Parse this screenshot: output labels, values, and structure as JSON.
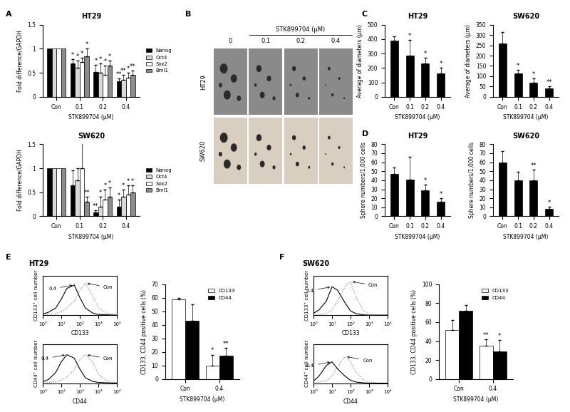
{
  "panel_labels": [
    "A",
    "B",
    "C",
    "D",
    "E",
    "F"
  ],
  "section_titles": [
    "HT29",
    "SW620"
  ],
  "image_panel": {
    "column_header": "STK899704 (μM)",
    "columns": [
      "0",
      "0.1",
      "0.2",
      "0.4"
    ],
    "rows": [
      "HT29",
      "SW620"
    ]
  },
  "chart_data": [
    {
      "type": "bar",
      "title": "HT29",
      "categories": [
        "Con",
        "0.1",
        "0.2",
        "0.4"
      ],
      "x_label": "STK899704 (μM)",
      "y_label": "Fold difference/GAPDH",
      "ylim": [
        0,
        1.5
      ],
      "yticks": [
        0,
        0.5,
        1,
        1.5
      ],
      "legend": "right",
      "series": [
        {
          "name": "Nanog",
          "color": "#000000",
          "values": [
            1,
            0.7,
            0.52,
            0.32
          ],
          "errors": [
            null,
            0.08,
            0.15,
            0.06
          ],
          "significance": [
            null,
            "*",
            "*",
            "**"
          ]
        },
        {
          "name": "Oct4",
          "color": "#d9d9d9",
          "values": [
            1,
            0.6,
            0.5,
            0.35
          ],
          "errors": [
            null,
            0.15,
            0.2,
            0.1
          ],
          "significance": [
            null,
            "*",
            "*",
            "**"
          ]
        },
        {
          "name": "Sox2",
          "color": "#ffffff",
          "values": [
            1,
            0.72,
            0.45,
            0.4
          ],
          "errors": [
            null,
            0.1,
            0.2,
            0.1
          ],
          "significance": [
            null,
            "*",
            "*",
            "*"
          ]
        },
        {
          "name": "Bmi1",
          "color": "#8c8c8c",
          "values": [
            1,
            0.85,
            0.65,
            0.45
          ],
          "errors": [
            null,
            0.15,
            0.1,
            0.1
          ],
          "significance": [
            null,
            "*",
            "*",
            "**"
          ]
        }
      ]
    },
    {
      "type": "bar",
      "title": "SW620",
      "categories": [
        "Con",
        "0.1",
        "0.2",
        "0.4"
      ],
      "x_label": "STK899704 (μM)",
      "y_label": "Fold difference/GAPDH",
      "ylim": [
        0,
        1.5
      ],
      "yticks": [
        0,
        0.5,
        1,
        1.5
      ],
      "legend": "right",
      "series": [
        {
          "name": "Nanog",
          "color": "#000000",
          "values": [
            1,
            0.65,
            0.08,
            0.2
          ],
          "errors": [
            null,
            0.3,
            0.05,
            0.15
          ],
          "significance": [
            null,
            null,
            "**",
            "*"
          ]
        },
        {
          "name": "Oct4",
          "color": "#d9d9d9",
          "values": [
            1,
            0.75,
            0.2,
            0.4
          ],
          "errors": [
            null,
            0.25,
            0.2,
            0.15
          ],
          "significance": [
            null,
            null,
            "*",
            "*"
          ]
        },
        {
          "name": "Sox2",
          "color": "#ffffff",
          "values": [
            1,
            1.0,
            0.35,
            0.45
          ],
          "errors": [
            null,
            0.6,
            0.2,
            0.2
          ],
          "significance": [
            null,
            null,
            "*",
            "*"
          ]
        },
        {
          "name": "Bmi1",
          "color": "#8c8c8c",
          "values": [
            1,
            0.3,
            0.4,
            0.5
          ],
          "errors": [
            null,
            0.1,
            0.2,
            0.15
          ],
          "significance": [
            null,
            "**",
            "*",
            "*"
          ]
        }
      ]
    },
    {
      "type": "bar",
      "title": "HT29",
      "categories": [
        "Con",
        "0.1",
        "0.2",
        "0.4"
      ],
      "x_label": "STK899704 (μM)",
      "y_label": "Average of diameters (μm)",
      "ylim": [
        0,
        500
      ],
      "yticks": [
        0,
        100,
        200,
        300,
        400,
        500
      ],
      "series": [
        {
          "color": "#000000",
          "values": [
            390,
            285,
            230,
            160
          ],
          "errors": [
            30,
            110,
            40,
            40
          ],
          "significance": [
            null,
            "*",
            "*",
            "*"
          ]
        }
      ]
    },
    {
      "type": "bar",
      "title": "SW620",
      "categories": [
        "Con",
        "0.1",
        "0.2",
        "0.4"
      ],
      "x_label": "STK899704 (μM)",
      "y_label": "Average of diameters (μm)",
      "ylim": [
        0,
        350
      ],
      "yticks": [
        0,
        50,
        100,
        150,
        200,
        250,
        300,
        350
      ],
      "series": [
        {
          "color": "#000000",
          "values": [
            260,
            115,
            68,
            40
          ],
          "errors": [
            55,
            15,
            20,
            10
          ],
          "significance": [
            null,
            "*",
            "*",
            "**"
          ]
        }
      ]
    },
    {
      "type": "bar",
      "title": "HT29",
      "categories": [
        "Con",
        "0.1",
        "0.2",
        "0.4"
      ],
      "x_label": "STK899704 (μM)",
      "y_label": "Sphere numbers/1,000 cells",
      "ylim": [
        0,
        80
      ],
      "yticks": [
        0,
        10,
        20,
        30,
        40,
        50,
        60,
        70,
        80
      ],
      "series": [
        {
          "color": "#000000",
          "values": [
            47,
            41,
            29,
            16
          ],
          "errors": [
            7,
            25,
            6,
            4
          ],
          "significance": [
            null,
            null,
            "*",
            "*"
          ]
        }
      ]
    },
    {
      "type": "bar",
      "title": "SW620",
      "categories": [
        "Con",
        "0.1",
        "0.2",
        "0.4"
      ],
      "x_label": "STK899704 (μM)",
      "y_label": "Sphere numbers/1,000 cells",
      "ylim": [
        0,
        80
      ],
      "yticks": [
        0,
        10,
        20,
        30,
        40,
        50,
        60,
        70,
        80
      ],
      "series": [
        {
          "color": "#000000",
          "values": [
            60,
            40,
            40,
            8
          ],
          "errors": [
            12,
            9,
            12,
            3
          ],
          "significance": [
            null,
            null,
            "**",
            "*"
          ]
        }
      ]
    },
    {
      "type": "line",
      "log": "x",
      "tick_labels": "x",
      "x_label": "CD133",
      "y_label": "CD133⁺ cell number",
      "x": [
        1,
        2,
        5,
        10,
        20,
        50,
        100,
        200,
        500,
        1000,
        3000,
        10000
      ],
      "xlim": [
        1,
        10000
      ],
      "xticks": [
        {
          "value": 1,
          "label": "10⁰"
        },
        {
          "value": 10,
          "label": "10¹"
        },
        {
          "value": 100,
          "label": "10²"
        },
        {
          "value": 1000,
          "label": "10³"
        },
        {
          "value": 10000,
          "label": "10⁴"
        }
      ],
      "ylim": [
        0,
        110
      ],
      "yticks": [],
      "series": [
        {
          "name": "Con",
          "color": "#808080",
          "line_style": "dotted",
          "values": [
            2,
            3,
            5,
            10,
            20,
            40,
            70,
            90,
            55,
            20,
            5,
            1
          ]
        },
        {
          "name": "0.4",
          "color": "#000000",
          "line_style": "solid",
          "values": [
            3,
            8,
            20,
            45,
            75,
            85,
            50,
            20,
            6,
            2,
            1,
            0
          ]
        }
      ]
    },
    {
      "type": "line",
      "log": "x",
      "tick_labels": "x",
      "x_label": "CD44",
      "y_label": "CD44⁺ cell number",
      "x": [
        1,
        2,
        5,
        10,
        20,
        50,
        100,
        200,
        500,
        1000,
        3000,
        10000
      ],
      "xlim": [
        1,
        10000
      ],
      "xticks": [
        {
          "value": 1,
          "label": "10⁰"
        },
        {
          "value": 10,
          "label": "10¹"
        },
        {
          "value": 100,
          "label": "10²"
        },
        {
          "value": 1000,
          "label": "10³"
        },
        {
          "value": 10000,
          "label": "10⁴"
        }
      ],
      "ylim": [
        0,
        110
      ],
      "yticks": [],
      "series": [
        {
          "name": "Con",
          "color": "#808080",
          "line_style": "dotted",
          "values": [
            1,
            2,
            4,
            8,
            18,
            38,
            65,
            80,
            60,
            25,
            6,
            1
          ]
        },
        {
          "name": "0.4",
          "color": "#000000",
          "line_style": "solid",
          "values": [
            4,
            10,
            30,
            60,
            80,
            70,
            40,
            15,
            5,
            2,
            1,
            0
          ]
        }
      ]
    },
    {
      "type": "bar",
      "categories": [
        "Con",
        "0.4"
      ],
      "x_label": "STK899704 (μM)",
      "y_label": "CD133, CD44 positive cells (%)",
      "ylim": [
        0,
        70
      ],
      "yticks": [
        0,
        10,
        20,
        30,
        40,
        50,
        60,
        70
      ],
      "legend": "upper right",
      "series": [
        {
          "name": "CD133",
          "color": "#ffffff",
          "values": [
            59,
            10
          ],
          "errors": [
            1,
            8
          ],
          "significance": [
            null,
            "*"
          ]
        },
        {
          "name": "CD44",
          "color": "#000000",
          "values": [
            43,
            17
          ],
          "errors": [
            12,
            6
          ],
          "significance": [
            null,
            "**"
          ]
        }
      ]
    },
    {
      "type": "line",
      "log": "x",
      "tick_labels": "x",
      "x_label": "CD133",
      "y_label": "CD133⁺ cell number",
      "x": [
        1,
        2,
        5,
        10,
        20,
        50,
        100,
        200,
        500,
        1000,
        3000,
        10000
      ],
      "xlim": [
        1,
        10000
      ],
      "xticks": [
        {
          "value": 1,
          "label": "10⁰"
        },
        {
          "value": 10,
          "label": "10¹"
        },
        {
          "value": 100,
          "label": "10²"
        },
        {
          "value": 1000,
          "label": "10³"
        },
        {
          "value": 10000,
          "label": "10⁴"
        }
      ],
      "ylim": [
        0,
        110
      ],
      "yticks": [],
      "series": [
        {
          "name": "Con",
          "color": "#808080",
          "line_style": "dotted",
          "values": [
            1,
            2,
            5,
            15,
            40,
            80,
            95,
            50,
            12,
            3,
            1,
            0
          ]
        },
        {
          "name": "0.4",
          "color": "#000000",
          "line_style": "solid",
          "values": [
            5,
            15,
            40,
            80,
            70,
            35,
            12,
            4,
            1,
            0,
            0,
            0
          ]
        }
      ]
    },
    {
      "type": "line",
      "log": "x",
      "tick_labels": "x",
      "x_label": "CD44",
      "y_label": "CD44⁺ cell number",
      "x": [
        1,
        2,
        5,
        10,
        20,
        50,
        100,
        200,
        500,
        1000,
        3000,
        10000
      ],
      "xlim": [
        1,
        10000
      ],
      "xticks": [
        {
          "value": 1,
          "label": "10⁰"
        },
        {
          "value": 10,
          "label": "10¹"
        },
        {
          "value": 100,
          "label": "10²"
        },
        {
          "value": 1000,
          "label": "10³"
        },
        {
          "value": 10000,
          "label": "10⁴"
        }
      ],
      "ylim": [
        0,
        110
      ],
      "yticks": [],
      "series": [
        {
          "name": "Con",
          "color": "#808080",
          "line_style": "dotted",
          "values": [
            1,
            3,
            8,
            20,
            45,
            75,
            60,
            30,
            10,
            3,
            1,
            0
          ]
        },
        {
          "name": "0.4",
          "color": "#000000",
          "line_style": "solid",
          "values": [
            6,
            20,
            50,
            60,
            40,
            20,
            8,
            3,
            1,
            0,
            0,
            0
          ]
        }
      ]
    },
    {
      "type": "bar",
      "categories": [
        "Con",
        "0.4"
      ],
      "x_label": "STK899704 (μM)",
      "y_label": "CD133, CD44 positive cells (%)",
      "ylim": [
        0,
        100
      ],
      "yticks": [
        0,
        20,
        40,
        60,
        80,
        100
      ],
      "legend": "upper right",
      "series": [
        {
          "name": "CD133",
          "color": "#ffffff",
          "values": [
            52,
            35
          ],
          "errors": [
            10,
            7
          ],
          "significance": [
            null,
            "**"
          ]
        },
        {
          "name": "CD44",
          "color": "#000000",
          "values": [
            72,
            29
          ],
          "errors": [
            6,
            12
          ],
          "significance": [
            null,
            "*"
          ]
        }
      ]
    }
  ]
}
